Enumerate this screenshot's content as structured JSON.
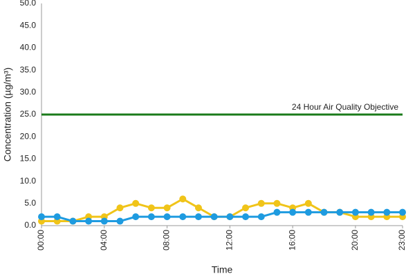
{
  "chart_data": {
    "type": "line",
    "x_label": "Time",
    "y_label": "Concentration (µg/m³)",
    "categories": [
      "00:00",
      null,
      null,
      null,
      "04:00",
      null,
      null,
      null,
      "08:00",
      null,
      null,
      null,
      "12:00",
      null,
      null,
      null,
      "16:00",
      null,
      null,
      null,
      "20:00",
      null,
      null,
      "23:00"
    ],
    "series": [
      {
        "color": "#f0c419",
        "values": [
          1,
          1,
          1,
          2,
          2,
          4,
          5,
          4,
          4,
          6,
          4,
          2,
          2,
          4,
          5,
          5,
          4,
          5,
          3,
          3,
          2,
          2,
          2,
          2
        ]
      },
      {
        "color": "#1e9be0",
        "values": [
          2,
          2,
          1,
          1,
          1,
          1,
          2,
          2,
          2,
          2,
          2,
          2,
          2,
          2,
          2,
          3,
          3,
          3,
          3,
          3,
          3,
          3,
          3,
          3
        ]
      }
    ],
    "reference_line": {
      "value": 25,
      "label": "24 Hour Air Quality Objective",
      "color": "#1a7a1a"
    },
    "ylim": [
      0,
      50
    ],
    "yticks": [
      {
        "value": 0,
        "label": "0.0"
      },
      {
        "value": 5,
        "label": "5.0"
      },
      {
        "value": 10,
        "label": "10.0"
      },
      {
        "value": 15,
        "label": "15.0"
      },
      {
        "value": 20,
        "label": "20.0"
      },
      {
        "value": 25,
        "label": "25.0"
      },
      {
        "value": 30,
        "label": "30.0"
      },
      {
        "value": 35,
        "label": "35.0"
      },
      {
        "value": 40,
        "label": "40.0"
      },
      {
        "value": 45,
        "label": "45.0"
      },
      {
        "value": 50,
        "label": "50.0"
      }
    ],
    "grid": false
  }
}
